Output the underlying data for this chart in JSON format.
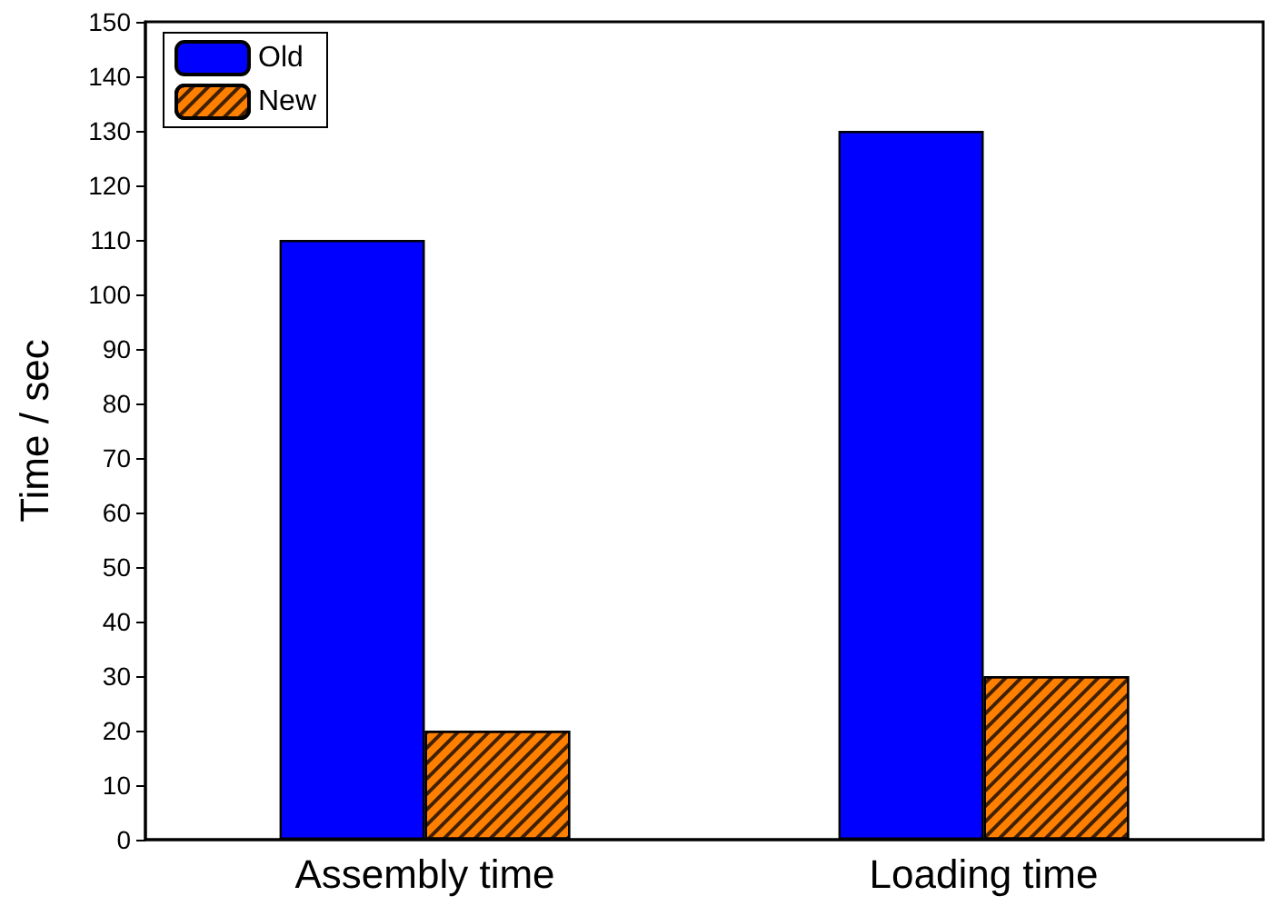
{
  "chart_data": {
    "type": "bar",
    "ylabel": "Time / sec",
    "categories": [
      "Assembly time",
      "Loading time"
    ],
    "series": [
      {
        "name": "Old",
        "color": "#0000ff",
        "values": [
          110,
          130
        ]
      },
      {
        "name": "New",
        "color": "#ff8000",
        "values": [
          20,
          30
        ]
      }
    ],
    "ylim": [
      0,
      150
    ],
    "yticks": [
      0,
      10,
      20,
      30,
      40,
      50,
      60,
      70,
      80,
      90,
      100,
      110,
      120,
      130,
      140,
      150
    ],
    "grid": false,
    "legend": "top left"
  }
}
